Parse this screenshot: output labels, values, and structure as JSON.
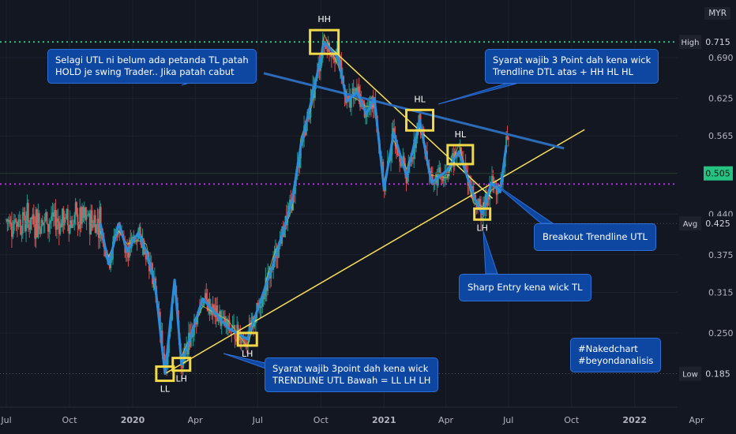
{
  "currency": "MYR",
  "chart_data": {
    "type": "line",
    "x": [
      "2019-07",
      "2019-10",
      "2020-01",
      "2020-04",
      "2020-07",
      "2020-10",
      "2021-01",
      "2021-04",
      "2021-07",
      "2021-10",
      "2022-01",
      "2022-04"
    ],
    "x_tick_labels": [
      "Jul",
      "Oct",
      "2020",
      "Apr",
      "Jul",
      "Oct",
      "2021",
      "Apr",
      "Jul",
      "Oct",
      "2022",
      "Apr"
    ],
    "y_tick_labels": [
      "0.690",
      "0.625",
      "0.565",
      "0.440",
      "0.375",
      "0.315",
      "0.250"
    ],
    "ylim": [
      0.16,
      0.75
    ],
    "series": [
      {
        "values": [
          [
            "2019-11-15",
            0.425
          ],
          [
            "2019-11-27",
            0.36
          ],
          [
            "2019-12-12",
            0.425
          ],
          [
            "2019-12-24",
            0.38
          ],
          [
            "2020-01-09",
            0.41
          ],
          [
            "2020-01-21",
            0.38
          ],
          [
            "2020-02-03",
            0.325
          ],
          [
            "2020-02-17",
            0.185
          ],
          [
            "2020-03-02",
            0.335
          ],
          [
            "2020-03-12",
            0.2
          ],
          [
            "2020-04-12",
            0.305
          ],
          [
            "2020-05-19",
            0.258
          ],
          [
            "2020-06-16",
            0.24
          ],
          [
            "2020-07-22",
            0.355
          ],
          [
            "2020-08-20",
            0.46
          ],
          [
            "2020-09-02",
            0.55
          ],
          [
            "2020-09-18",
            0.625
          ],
          [
            "2020-10-06",
            0.715
          ],
          [
            "2020-10-26",
            0.69
          ],
          [
            "2020-11-08",
            0.62
          ],
          [
            "2020-11-23",
            0.635
          ],
          [
            "2020-12-06",
            0.6
          ],
          [
            "2020-12-18",
            0.625
          ],
          [
            "2021-01-01",
            0.48
          ],
          [
            "2021-01-15",
            0.57
          ],
          [
            "2021-02-03",
            0.5
          ],
          [
            "2021-02-22",
            0.59
          ],
          [
            "2021-03-11",
            0.49
          ],
          [
            "2021-04-03",
            0.51
          ],
          [
            "2021-04-20",
            0.54
          ],
          [
            "2021-05-11",
            0.47
          ],
          [
            "2021-05-24",
            0.44
          ],
          [
            "2021-06-06",
            0.49
          ],
          [
            "2021-06-19",
            0.475
          ],
          [
            "2021-06-28",
            0.55
          ]
        ]
      }
    ],
    "levels": [
      {
        "label": "High",
        "value": "0.715"
      },
      {
        "label": "Avg",
        "value": "0.425"
      },
      {
        "label": "Low",
        "value": "0.185"
      },
      {
        "label": "",
        "value": "0.505"
      }
    ],
    "point_labels": [
      "HH",
      "HL",
      "HL",
      "LL",
      "LH",
      "LH",
      "LH"
    ],
    "grid": true
  },
  "annotations": {
    "hold_note": [
      "Selagi UTL ni belum ada petanda TL patah",
      "HOLD je swing Trader.. Jika patah cabut"
    ],
    "dtl_note": [
      "Syarat wajib 3 Point dah kena wick",
      "Trendline DTL atas + HH HL HL"
    ],
    "breakout": [
      "Breakout Trendline UTL"
    ],
    "sharp_entry": [
      "Sharp Entry kena wick TL"
    ],
    "utl_note": [
      "Syarat wajib 3point dah kena wick",
      "TRENDLINE UTL Bawah = LL LH LH"
    ],
    "hashtags": [
      "#Nakedchart",
      "#beyondanalisis"
    ]
  },
  "colors": {
    "background": "#131722",
    "zigzag": "#2b8cde",
    "trendline": "#f7e05a",
    "high_line": "#26c281",
    "price_line": "#b72ee0",
    "current_price": "#26c281",
    "bull": "#26a69a",
    "bear": "#ef5350",
    "note_box": "#0d47a1"
  }
}
